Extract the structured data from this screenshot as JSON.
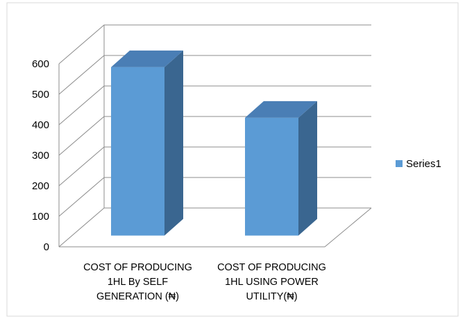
{
  "chart_data": {
    "type": "bar3d",
    "categories": [
      "COST OF PRODUCING 1HL By SELF GENERATION (₦)",
      "COST OF PRODUCING 1HL USING POWER UTILITY(₦)"
    ],
    "series": [
      {
        "name": "Series1",
        "color": "#5b9bd5",
        "values": [
          552,
          386
        ]
      }
    ],
    "ylim": [
      0,
      600
    ],
    "yticks": [
      0,
      100,
      200,
      300,
      400,
      500,
      600
    ],
    "grid": true,
    "legend": "right"
  }
}
